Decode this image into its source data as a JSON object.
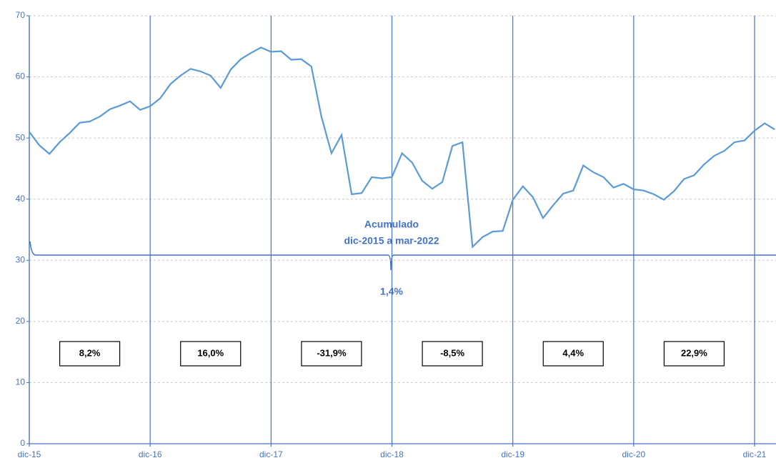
{
  "chart_data": {
    "type": "line",
    "categories": [
      "dic-15",
      null,
      null,
      null,
      null,
      null,
      null,
      null,
      null,
      null,
      null,
      null,
      "dic-16",
      null,
      null,
      null,
      null,
      null,
      null,
      null,
      null,
      null,
      null,
      null,
      "dic-17",
      null,
      null,
      null,
      null,
      null,
      null,
      null,
      null,
      null,
      null,
      null,
      "dic-18",
      null,
      null,
      null,
      null,
      null,
      null,
      null,
      null,
      null,
      null,
      null,
      "dic-19",
      null,
      null,
      null,
      null,
      null,
      null,
      null,
      null,
      null,
      null,
      null,
      "dic-20",
      null,
      null,
      null,
      null,
      null,
      null,
      null,
      null,
      null,
      null,
      null,
      "dic-21",
      null,
      null
    ],
    "values": [
      51.0,
      48.8,
      47.4,
      49.3,
      50.8,
      52.5,
      52.7,
      53.5,
      54.7,
      55.3,
      56.0,
      54.6,
      55.2,
      56.5,
      58.8,
      60.2,
      61.3,
      60.9,
      60.2,
      58.2,
      61.2,
      62.9,
      63.9,
      64.8,
      64.1,
      64.2,
      62.8,
      62.9,
      61.7,
      53.5,
      47.5,
      50.5,
      40.8,
      41.0,
      43.6,
      43.4,
      43.6,
      47.5,
      46.0,
      43.0,
      41.7,
      42.8,
      48.7,
      49.3,
      32.2,
      33.8,
      34.7,
      34.8,
      39.9,
      42.1,
      40.3,
      36.9,
      39.0,
      40.9,
      41.4,
      45.5,
      44.4,
      43.6,
      41.9,
      42.5,
      41.6,
      41.4,
      40.8,
      39.9,
      41.3,
      43.3,
      43.9,
      45.7,
      47.1,
      47.9,
      49.3,
      49.6,
      51.2,
      52.4,
      51.4
    ],
    "color": "#5b9bd5",
    "ylim": [
      0,
      70
    ],
    "yticks": [
      0,
      10,
      20,
      30,
      40,
      50,
      60,
      70
    ],
    "grid": true,
    "annotations": [
      "Acumulado",
      "dic-2015 a mar-2022",
      "1,4%"
    ],
    "period_returns": [
      "8,2%",
      "16,0%",
      "-31,9%",
      "-8,5%",
      "4,4%",
      "22,9%"
    ]
  }
}
